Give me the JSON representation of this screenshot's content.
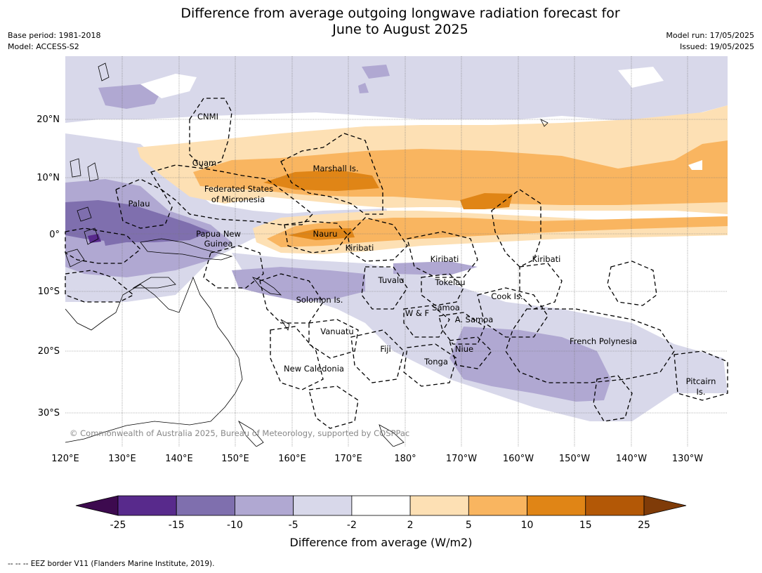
{
  "title_line1": "Difference from average outgoing longwave radiation forecast for",
  "title_line2": "June to August 2025",
  "meta_left": [
    "Base period: 1981-2018",
    "Model: ACCESS-S2"
  ],
  "meta_right": [
    "Model run: 17/05/2025",
    "Issued: 19/05/2025"
  ],
  "credit": "© Commonwealth of Australia 2025, Bureau of Meteorology, supported by COSPPac",
  "lon_labels": [
    "120°E",
    "130°E",
    "140°E",
    "150°E",
    "160°E",
    "170°E",
    "180°",
    "170°W",
    "160°W",
    "150°W",
    "140°W",
    "130°W"
  ],
  "lat_labels": [
    "20°N",
    "10°N",
    "0°",
    "10°S",
    "20°S",
    "30°S"
  ],
  "places": [
    "CNMI",
    "Guam",
    "Marshall Is.",
    "Federated States",
    "of Micronesia",
    "Palau",
    "Papua New",
    "Guinea",
    "Nauru",
    "Kiribati",
    "Kiribati",
    "Kiribati",
    "Tuvalu",
    "Tokelau",
    "Solomon Is.",
    "W & F",
    "Samoa",
    "A. Samoa",
    "Cook Is.",
    "Vanuatu",
    "Fiji",
    "Niue",
    "Tonga",
    "French Polynesia",
    "New Caledonia",
    "Pitcairn",
    "Is."
  ],
  "colorbar": {
    "ticks": [
      "-25",
      "-15",
      "-10",
      "-5",
      "-2",
      "2",
      "5",
      "10",
      "15",
      "25"
    ],
    "colors": [
      "#3d0a4f",
      "#582a8c",
      "#7f6fae",
      "#b0a8d2",
      "#d8d8ea",
      "#ffffff",
      "#fde0b4",
      "#f9b560",
      "#e08516",
      "#b35806",
      "#7f3b08"
    ],
    "label": "Difference from average (W/m2)"
  },
  "footnote": "--  --  -- EEZ border V11 (Flanders Marine Institute, 2019)."
}
